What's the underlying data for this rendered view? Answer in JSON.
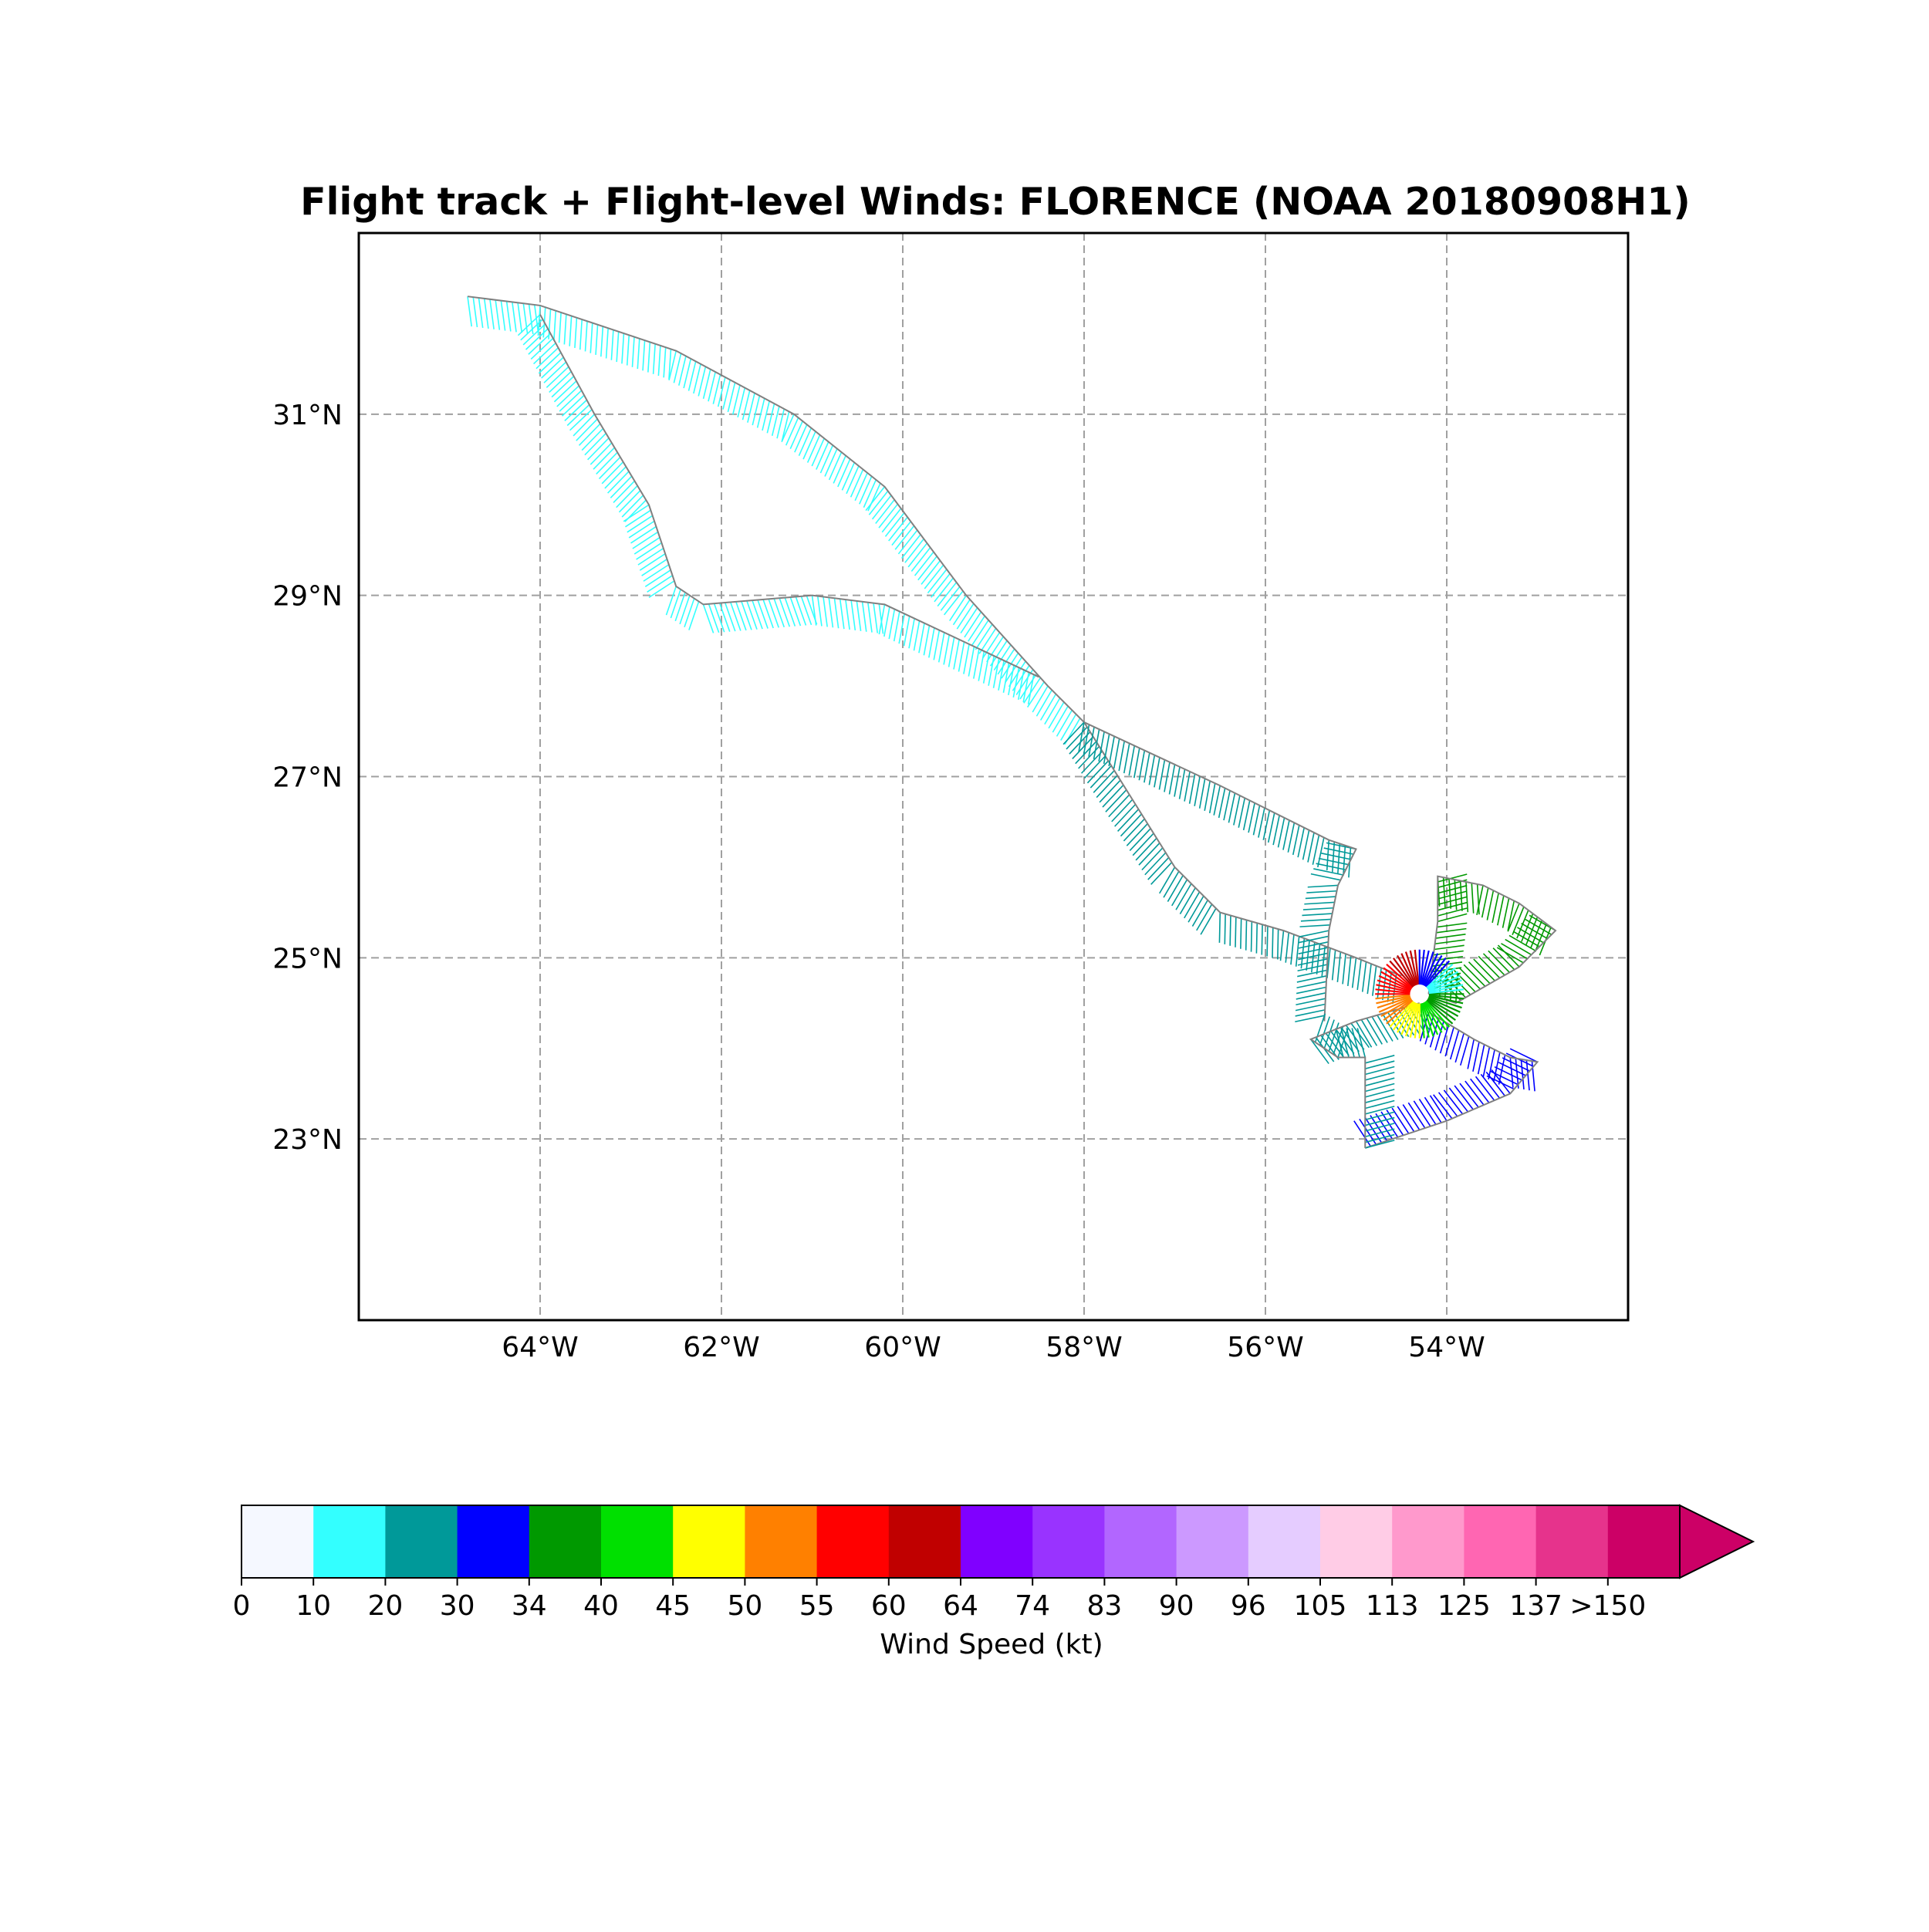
{
  "title": "Flight track + Flight-level Winds: FLORENCE (NOAA 20180908H1)",
  "map": {
    "projection": "PlateCarree",
    "lon_range": [
      -66,
      -52
    ],
    "lat_range": [
      21,
      33
    ],
    "gridlines": "dashed gray",
    "lon_ticks": [
      {
        "value": -64,
        "label": "64°W"
      },
      {
        "value": -62,
        "label": "62°W"
      },
      {
        "value": -60,
        "label": "60°W"
      },
      {
        "value": -58,
        "label": "58°W"
      },
      {
        "value": -56,
        "label": "56°W"
      },
      {
        "value": -54,
        "label": "54°W"
      }
    ],
    "lat_ticks": [
      {
        "value": 31,
        "label": "31°N"
      },
      {
        "value": 29,
        "label": "29°N"
      },
      {
        "value": 27,
        "label": "27°N"
      },
      {
        "value": 25,
        "label": "25°N"
      },
      {
        "value": 23,
        "label": "23°N"
      }
    ]
  },
  "track": {
    "line_color": "#808080",
    "barb_colors": {
      "calm": "#f5f8ff",
      "light": "#33ffff",
      "moderate": "#009999",
      "fresh": "#0000ff",
      "gale": "#009900",
      "strong_gale": "#00e000",
      "storm": "#ffff00",
      "storm_high": "#ff8000",
      "violent": "#ff0000",
      "violent_high": "#c00000"
    },
    "segments": [
      {
        "name": "outbound-northwest",
        "points": [
          [
            -64.8,
            32.3
          ],
          [
            -64.0,
            32.2
          ],
          [
            -62.5,
            31.7
          ],
          [
            -61.2,
            31.0
          ],
          [
            -60.2,
            30.2
          ],
          [
            -59.3,
            29.0
          ],
          [
            -58.4,
            28.0
          ],
          [
            -58.0,
            27.6
          ]
        ],
        "barb_color": "light"
      },
      {
        "name": "west-leg",
        "points": [
          [
            -64.0,
            32.1
          ],
          [
            -63.4,
            31.0
          ],
          [
            -62.8,
            30.0
          ],
          [
            -62.5,
            29.1
          ],
          [
            -62.2,
            28.9
          ],
          [
            -61.0,
            29.0
          ],
          [
            -60.2,
            28.9
          ],
          [
            -58.5,
            28.1
          ]
        ],
        "barb_color": "light"
      },
      {
        "name": "approach-south",
        "points": [
          [
            -58.0,
            27.6
          ],
          [
            -57.5,
            26.8
          ],
          [
            -57.0,
            26.0
          ],
          [
            -56.5,
            25.5
          ],
          [
            -55.8,
            25.3
          ],
          [
            -55.0,
            25.0
          ],
          [
            -54.5,
            24.8
          ]
        ],
        "barb_color": "moderate"
      },
      {
        "name": "approach-north",
        "points": [
          [
            -58.0,
            27.6
          ],
          [
            -56.5,
            26.9
          ],
          [
            -55.3,
            26.3
          ],
          [
            -55.0,
            26.2
          ],
          [
            -55.2,
            25.8
          ],
          [
            -55.3,
            25.3
          ],
          [
            -55.35,
            24.3
          ]
        ],
        "barb_color": "moderate"
      },
      {
        "name": "pattern-northeast-leg",
        "points": [
          [
            -54.2,
            24.6
          ],
          [
            -54.1,
            25.4
          ],
          [
            -54.1,
            25.9
          ],
          [
            -53.6,
            25.8
          ],
          [
            -53.2,
            25.6
          ],
          [
            -52.8,
            25.3
          ],
          [
            -53.2,
            24.9
          ],
          [
            -53.9,
            24.5
          ],
          [
            -54.2,
            24.6
          ]
        ],
        "barb_color": "gale"
      },
      {
        "name": "pattern-southeast-leg",
        "points": [
          [
            -54.2,
            24.4
          ],
          [
            -53.7,
            24.1
          ],
          [
            -53.3,
            23.9
          ],
          [
            -53.0,
            23.85
          ],
          [
            -53.3,
            23.5
          ],
          [
            -54.0,
            23.2
          ],
          [
            -54.9,
            22.9
          ]
        ],
        "barb_color": "fresh"
      },
      {
        "name": "pattern-southwest-leg",
        "points": [
          [
            -54.9,
            22.9
          ],
          [
            -54.9,
            23.4
          ],
          [
            -54.9,
            23.9
          ],
          [
            -55.2,
            23.9
          ],
          [
            -55.5,
            24.1
          ],
          [
            -55.0,
            24.3
          ],
          [
            -54.3,
            24.5
          ]
        ],
        "barb_color": "moderate"
      }
    ],
    "core": {
      "center": [
        -54.3,
        24.6
      ],
      "radius_deg": 0.35
    }
  },
  "colorbar": {
    "label": "Wind Speed (kt)",
    "extend": "max",
    "boundaries": [
      "0",
      "10",
      "20",
      "30",
      "34",
      "40",
      "45",
      "50",
      "55",
      "60",
      "64",
      "74",
      "83",
      "90",
      "96",
      "105",
      "113",
      "125",
      "137",
      ">150"
    ],
    "colors": [
      "#f5f8ff",
      "#33ffff",
      "#009999",
      "#0000ff",
      "#009900",
      "#00e000",
      "#ffff00",
      "#ff8000",
      "#ff0000",
      "#c00000",
      "#8000ff",
      "#9933ff",
      "#b266ff",
      "#cc99ff",
      "#e5ccff",
      "#ffcce6",
      "#ff99cc",
      "#ff66b2",
      "#e6338c",
      "#cc0066"
    ],
    "extend_color": "#cc0066"
  }
}
